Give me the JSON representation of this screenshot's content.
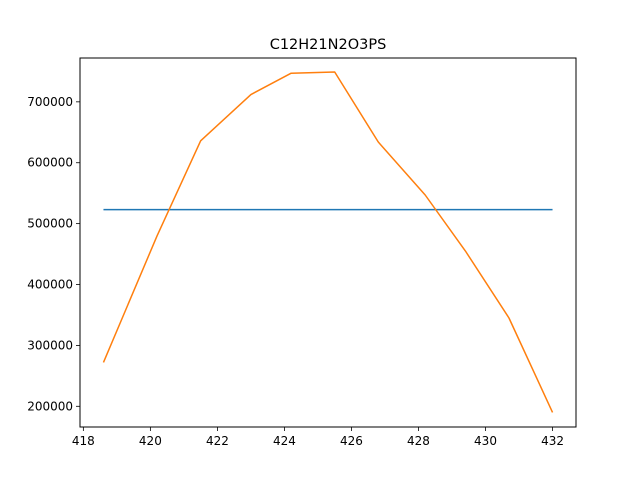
{
  "chart_data": {
    "type": "line",
    "title": "C12H21N2O3PS",
    "xlabel": "",
    "ylabel": "",
    "xlim": [
      417.9,
      432.7
    ],
    "ylim": [
      166000,
      772000
    ],
    "x_ticks": [
      418,
      420,
      422,
      424,
      426,
      428,
      430,
      432
    ],
    "y_ticks": [
      200000,
      300000,
      400000,
      500000,
      600000,
      700000
    ],
    "x_tick_labels": [
      "418",
      "420",
      "422",
      "424",
      "426",
      "428",
      "430",
      "432"
    ],
    "y_tick_labels": [
      "200000",
      "300000",
      "400000",
      "500000",
      "600000",
      "700000"
    ],
    "grid": false,
    "series": [
      {
        "color": "#1f77b4",
        "x": [
          418.6,
          432.0
        ],
        "y": [
          523000,
          523000
        ]
      },
      {
        "color": "#ff7f0e",
        "x": [
          418.6,
          420.2,
          421.5,
          423.0,
          424.2,
          425.5,
          426.8,
          428.2,
          429.4,
          430.7,
          432.0
        ],
        "y": [
          272000,
          480000,
          636000,
          712000,
          747000,
          749000,
          634000,
          547000,
          455000,
          345000,
          190000
        ]
      }
    ]
  }
}
